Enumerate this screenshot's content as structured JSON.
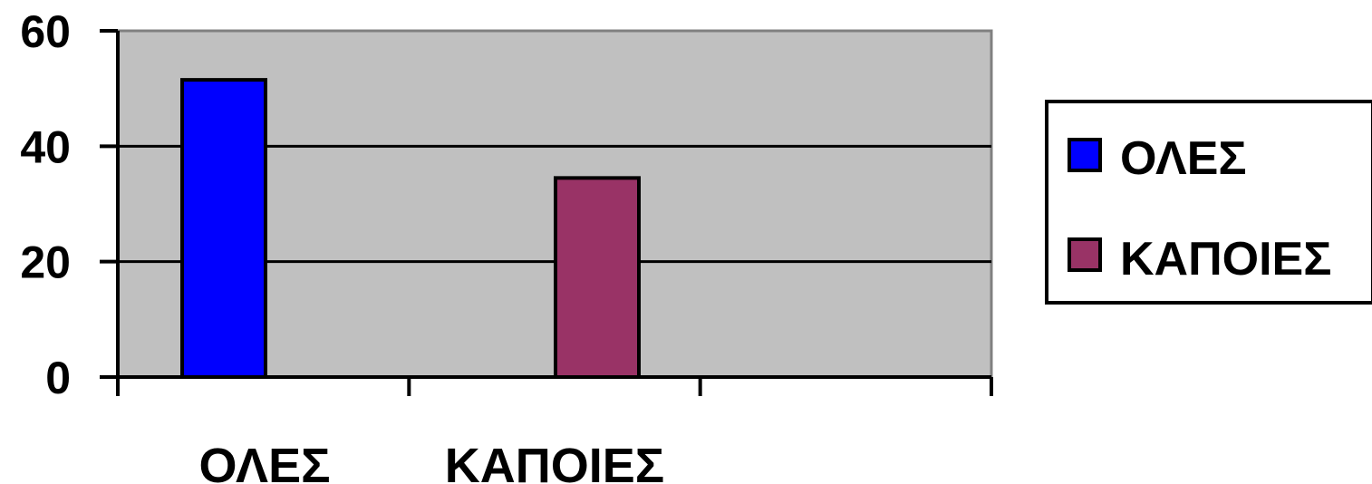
{
  "chart_data": {
    "type": "bar",
    "categories": [
      "ΟΛΕΣ",
      "ΚΑΠΟΙΕΣ"
    ],
    "series": [
      {
        "name": "ΟΛΕΣ",
        "color": "#0000ff",
        "values": [
          51.5,
          null
        ]
      },
      {
        "name": "ΚΑΠΟΙΕΣ",
        "color": "#993366",
        "values": [
          null,
          34.5
        ]
      }
    ],
    "y_ticks": [
      "0",
      "20",
      "40",
      "60"
    ],
    "ylim": [
      0,
      60
    ],
    "grid": true,
    "plot_background": "#c0c0c0",
    "legend_position": "right"
  }
}
